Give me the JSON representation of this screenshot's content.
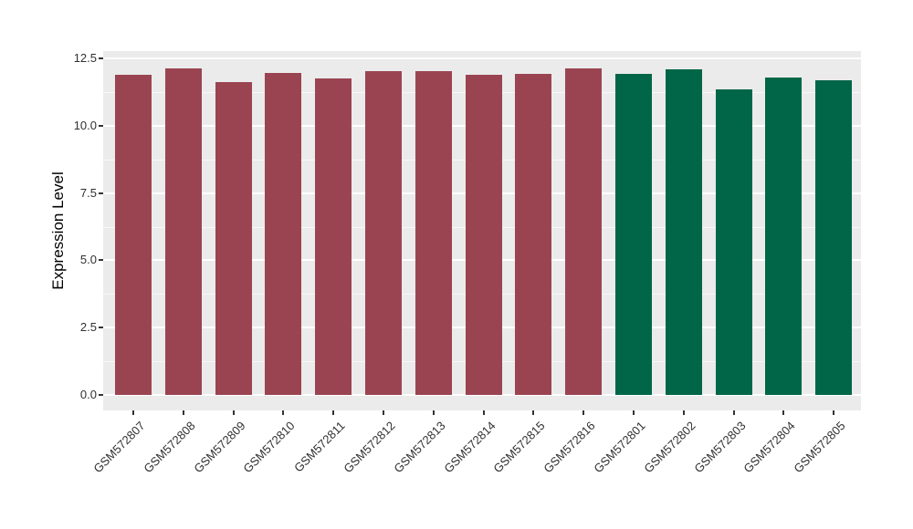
{
  "chart_data": {
    "type": "bar",
    "title": "",
    "xlabel": "",
    "ylabel": "Expression Level",
    "categories": [
      "GSM572807",
      "GSM572808",
      "GSM572809",
      "GSM572810",
      "GSM572811",
      "GSM572812",
      "GSM572813",
      "GSM572814",
      "GSM572815",
      "GSM572816",
      "GSM572801",
      "GSM572802",
      "GSM572803",
      "GSM572804",
      "GSM572805"
    ],
    "values": [
      11.9,
      12.13,
      11.61,
      11.96,
      11.77,
      12.04,
      12.04,
      11.89,
      11.93,
      12.13,
      11.93,
      12.09,
      11.35,
      11.8,
      11.69
    ],
    "bar_colors": [
      "#9A4452",
      "#9A4452",
      "#9A4452",
      "#9A4452",
      "#9A4452",
      "#9A4452",
      "#9A4452",
      "#9A4452",
      "#9A4452",
      "#9A4452",
      "#006647",
      "#006647",
      "#006647",
      "#006647",
      "#006647"
    ],
    "group_colors": {
      "red_group": "#9A4452",
      "green_group": "#006647"
    },
    "ylim": [
      0,
      12.77
    ],
    "yticks": [
      0.0,
      2.5,
      5.0,
      7.5,
      10.0,
      12.5
    ],
    "ytick_labels": [
      "0.0",
      "2.5",
      "5.0",
      "7.5",
      "10.0",
      "12.5"
    ],
    "yticks_minor": [
      1.25,
      3.75,
      6.25,
      8.75,
      11.25
    ],
    "grid": true,
    "legend": "none",
    "panel_background": "#EBEBEB",
    "grid_color": "#FFFFFF"
  }
}
